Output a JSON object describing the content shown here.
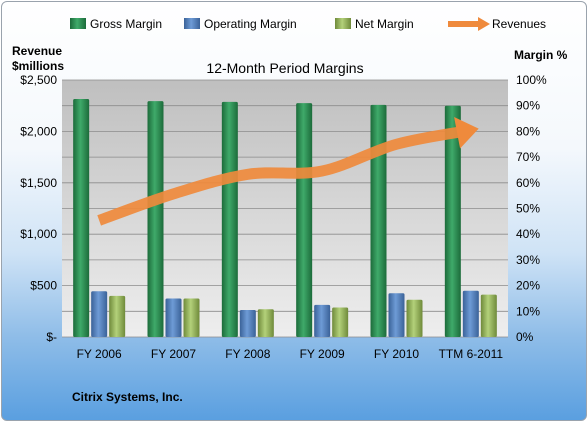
{
  "chart_data": {
    "type": "bar",
    "title": "12-Month Period Margins",
    "company": "Citrix Systems, Inc.",
    "categories": [
      "FY 2006",
      "FY 2007",
      "FY 2008",
      "FY 2009",
      "FY 2010",
      "TTM 6-2011"
    ],
    "y_left": {
      "label_line1": "Revenue",
      "label_line2": "$millions",
      "min": 0,
      "max": 2500,
      "step": 500,
      "ticks": [
        "$-",
        "$500",
        "$1,000",
        "$1,500",
        "$2,000",
        "$2,500"
      ]
    },
    "y_right": {
      "label": "Margin %",
      "min": 0,
      "max": 100,
      "step": 10,
      "ticks": [
        "0%",
        "10%",
        "20%",
        "30%",
        "40%",
        "50%",
        "60%",
        "70%",
        "80%",
        "90%",
        "100%"
      ]
    },
    "series": [
      {
        "name": "Gross Margin",
        "type": "bar",
        "axis": "right",
        "color": "#2e8b57",
        "values": [
          92.6,
          91.8,
          91.5,
          91.0,
          90.3,
          90.0
        ]
      },
      {
        "name": "Operating Margin",
        "type": "bar",
        "axis": "right",
        "color": "#4f81bd",
        "values": [
          17.8,
          15.0,
          10.5,
          12.5,
          17.0,
          18.0
        ]
      },
      {
        "name": "Net Margin",
        "type": "bar",
        "axis": "right",
        "color": "#9bbb59",
        "values": [
          16.0,
          15.0,
          10.8,
          11.5,
          14.5,
          16.5
        ]
      },
      {
        "name": "Revenues",
        "type": "line",
        "axis": "left",
        "color": "#ef8a3c",
        "values": [
          1134,
          1392,
          1583,
          1615,
          1875,
          2012
        ]
      }
    ],
    "legend_position": "top",
    "grid": true
  }
}
